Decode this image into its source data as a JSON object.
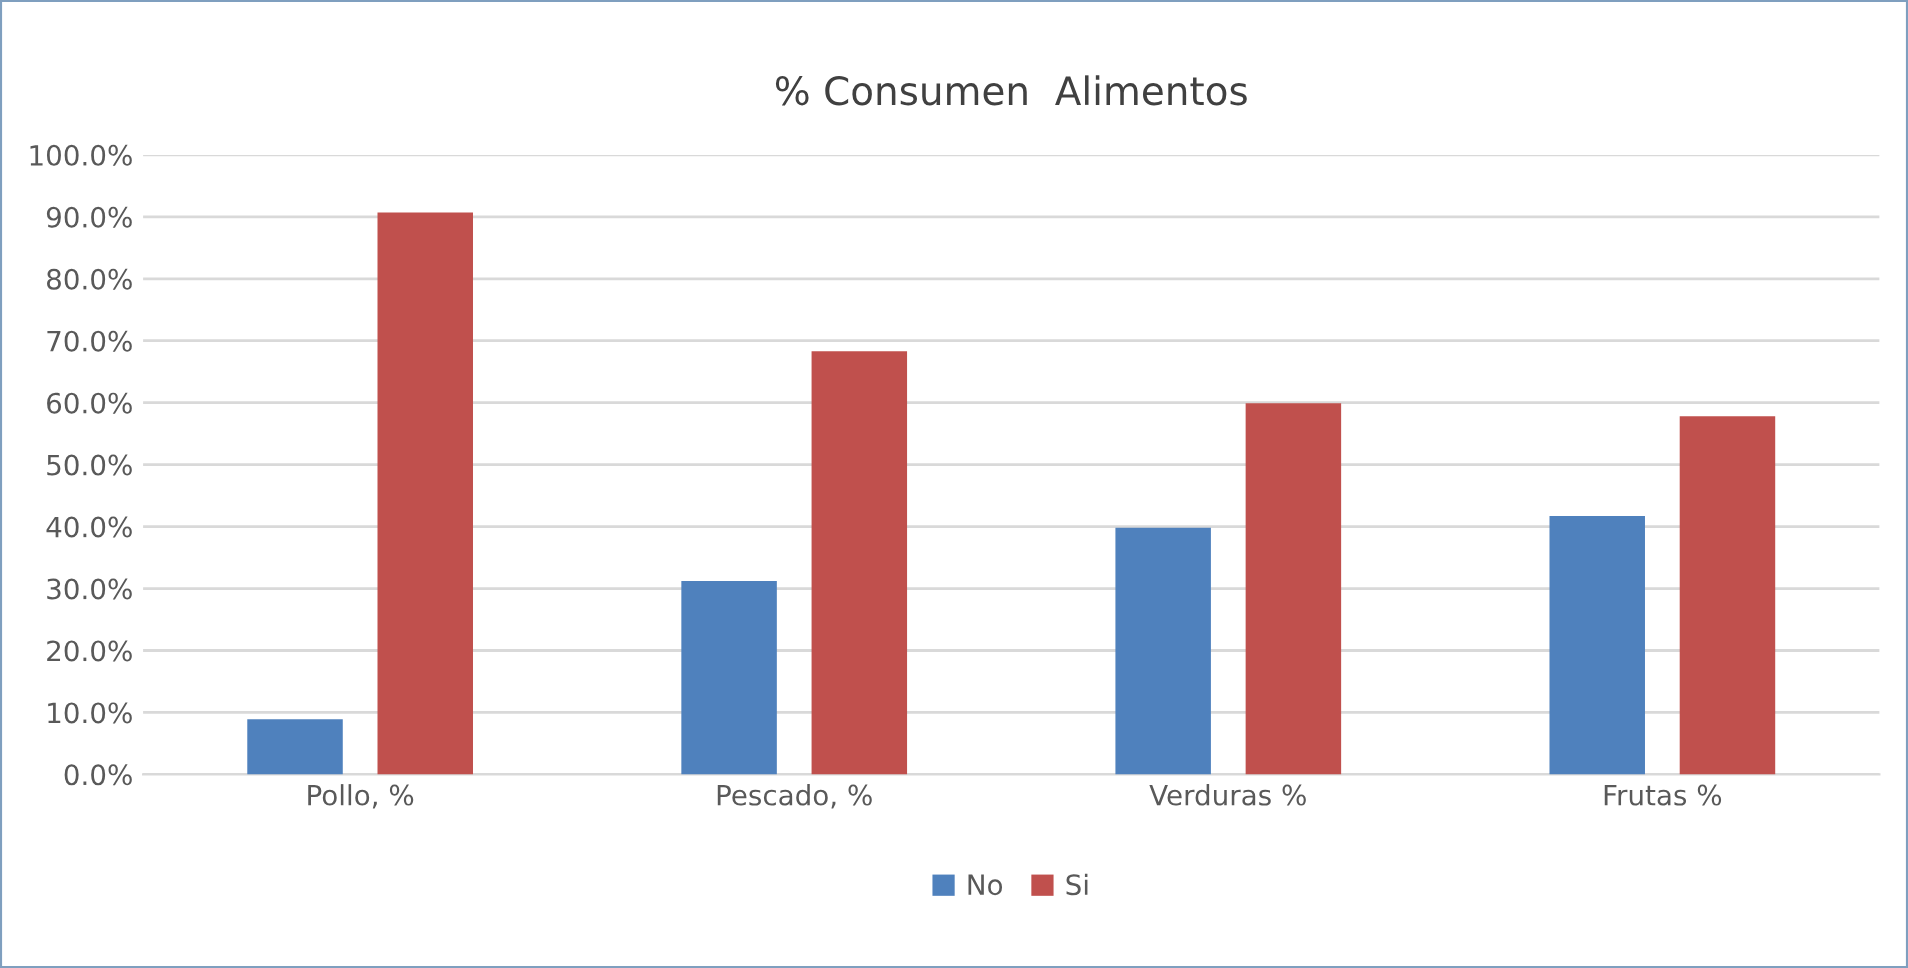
{
  "chart_data": {
    "type": "bar",
    "title": "% Consumen  Alimentos",
    "categories": [
      "Pollo, %",
      "Pescado, %",
      "Verduras %",
      "Frutas %"
    ],
    "series": [
      {
        "name": "No",
        "color": "#4f81bd",
        "values": [
          8.9,
          31.2,
          39.8,
          41.7
        ]
      },
      {
        "name": "Si",
        "color": "#c0504d",
        "values": [
          90.7,
          68.3,
          59.9,
          57.8
        ]
      }
    ],
    "ylim": [
      0,
      100
    ],
    "yticks": [
      {
        "value": 0,
        "label": "0.0%"
      },
      {
        "value": 10,
        "label": "10.0%"
      },
      {
        "value": 20,
        "label": "20.0%"
      },
      {
        "value": 30,
        "label": "30.0%"
      },
      {
        "value": 40,
        "label": "40.0%"
      },
      {
        "value": 50,
        "label": "50.0%"
      },
      {
        "value": 60,
        "label": "60.0%"
      },
      {
        "value": 70,
        "label": "70.0%"
      },
      {
        "value": 80,
        "label": "80.0%"
      },
      {
        "value": 90,
        "label": "90.0%"
      },
      {
        "value": 100,
        "label": "100.0%"
      }
    ],
    "grid": "y",
    "legend": "bottom"
  }
}
